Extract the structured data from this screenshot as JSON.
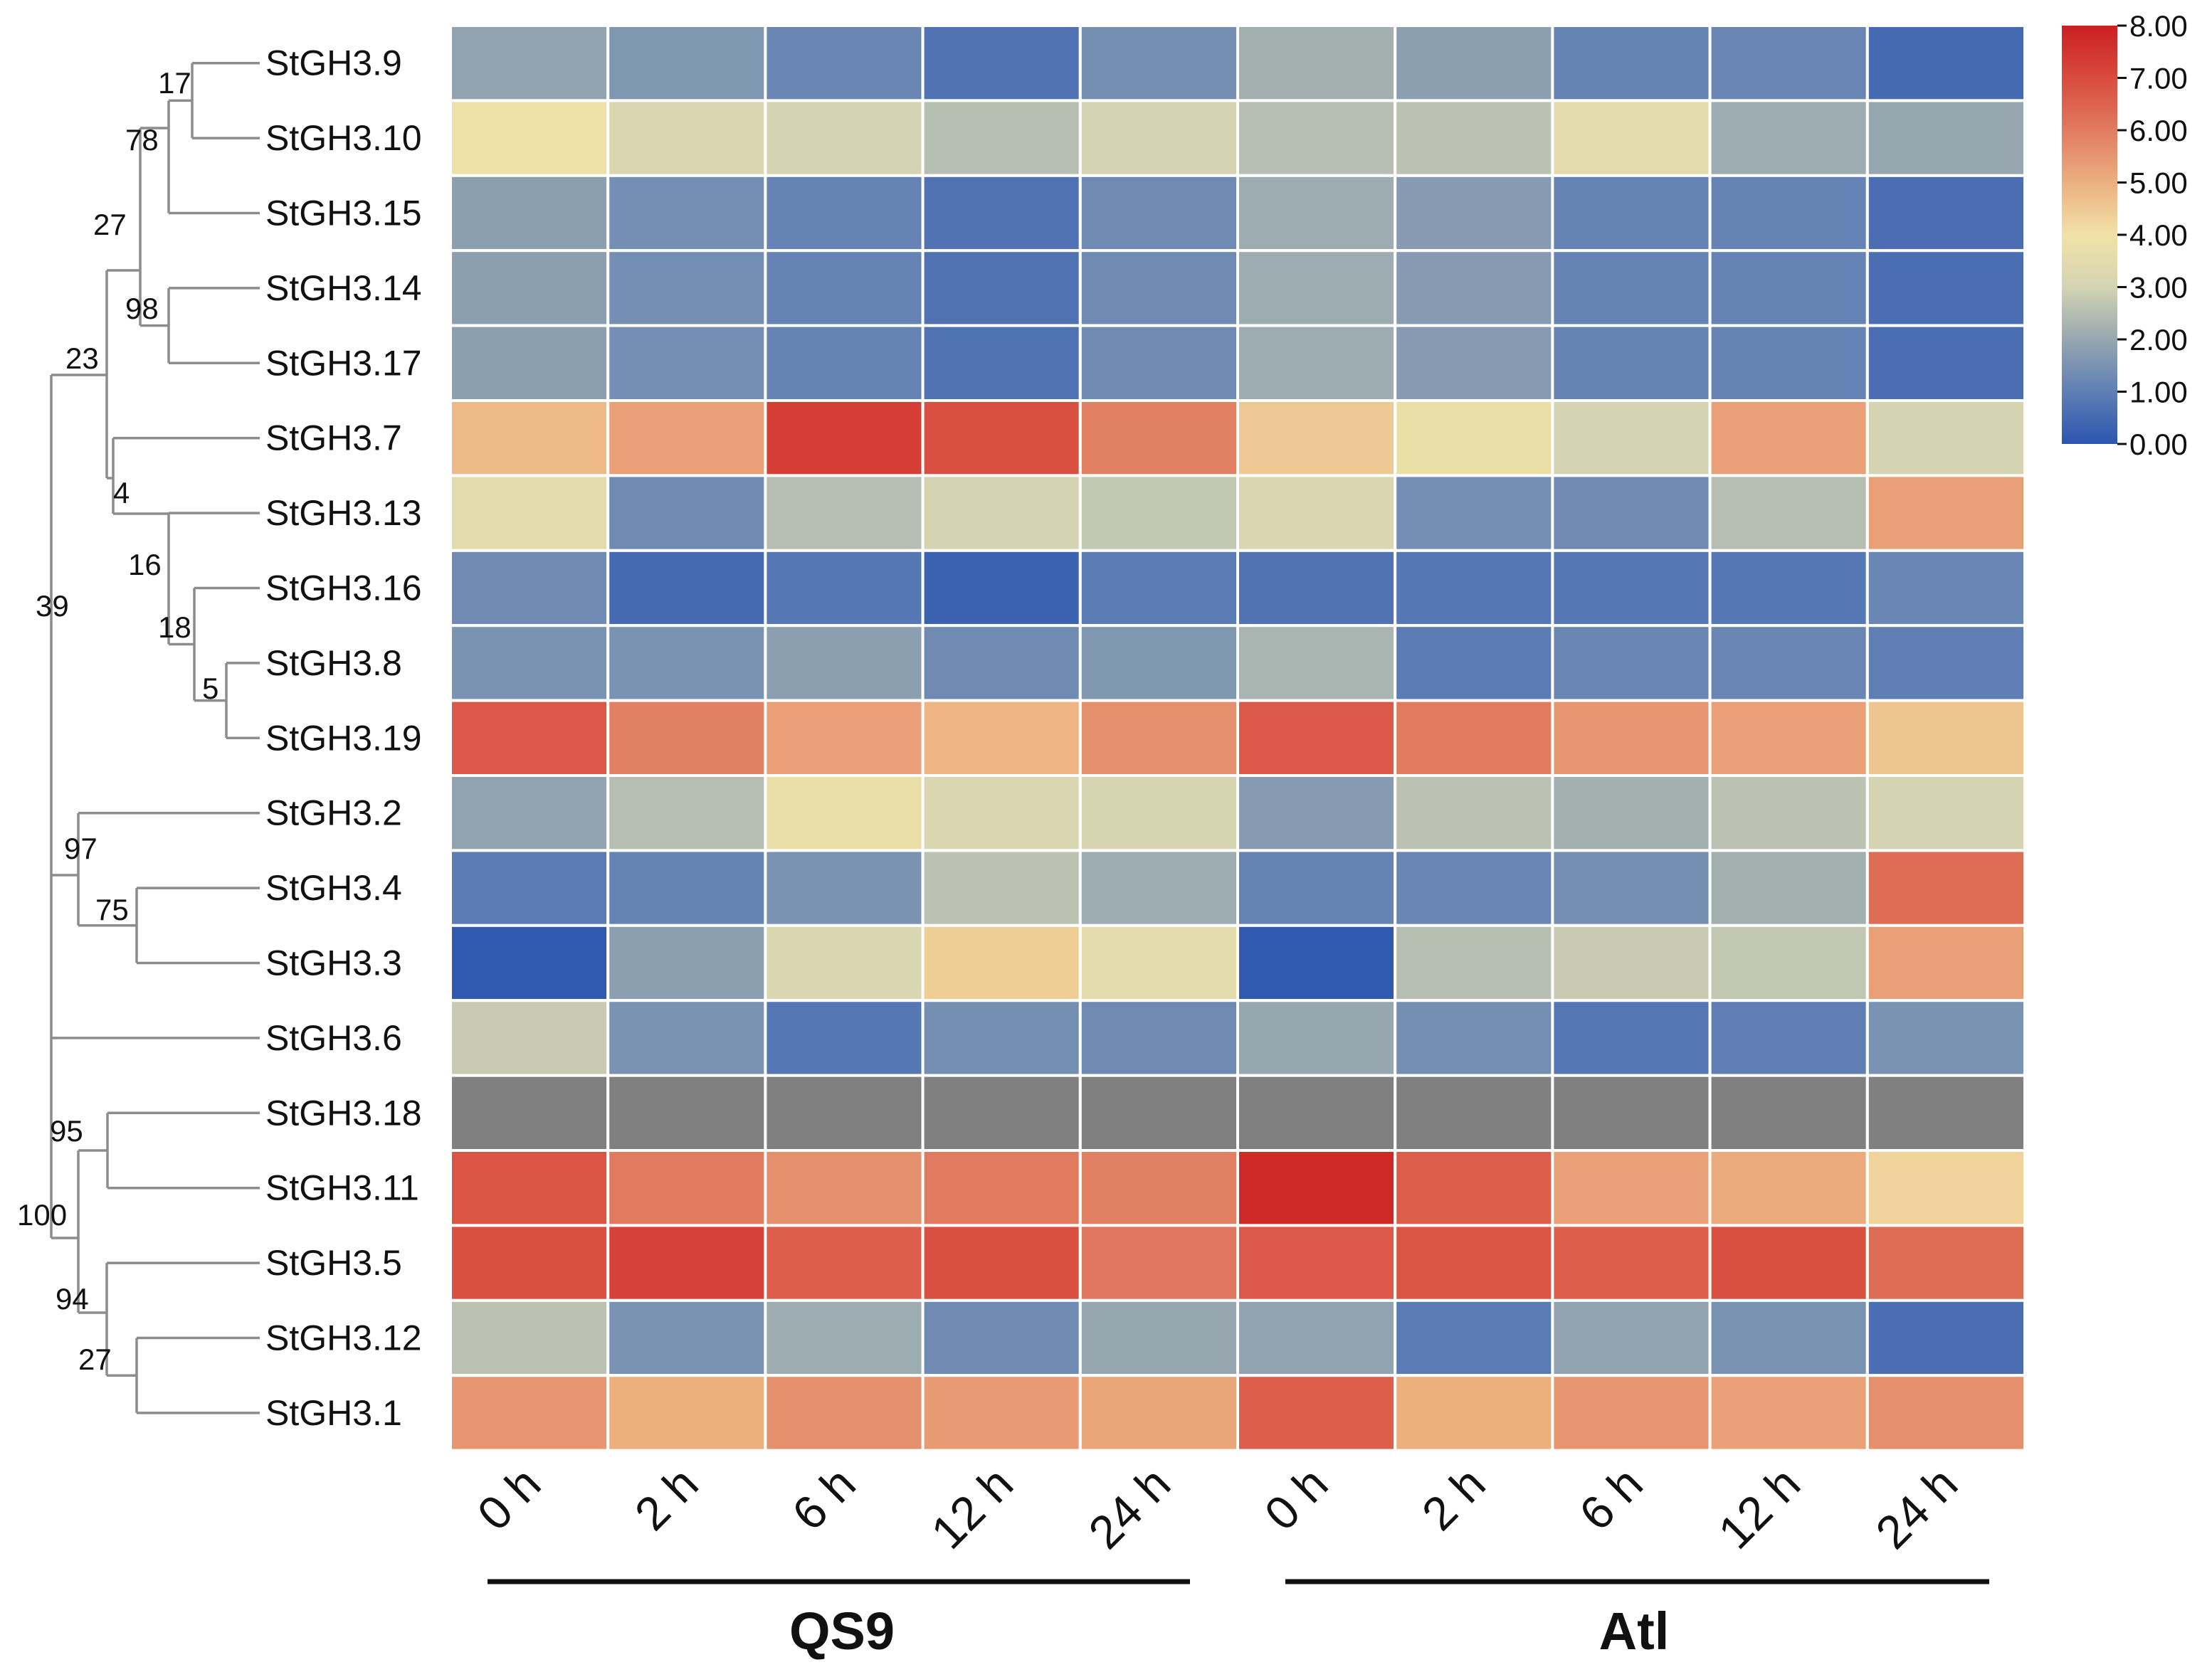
{
  "chart_data": {
    "type": "heatmap",
    "title": "",
    "rows": [
      "StGH3.9",
      "StGH3.10",
      "StGH3.15",
      "StGH3.14",
      "StGH3.17",
      "StGH3.7",
      "StGH3.13",
      "StGH3.16",
      "StGH3.8",
      "StGH3.19",
      "StGH3.2",
      "StGH3.4",
      "StGH3.3",
      "StGH3.6",
      "StGH3.18",
      "StGH3.11",
      "StGH3.5",
      "StGH3.12",
      "StGH3.1"
    ],
    "columns": [
      "0 h",
      "2 h",
      "6 h",
      "12 h",
      "24 h",
      "0 h",
      "2 h",
      "6 h",
      "12 h",
      "24 h"
    ],
    "groups": [
      {
        "name": "QS9",
        "columns": [
          0,
          4
        ]
      },
      {
        "name": "Atl",
        "columns": [
          5,
          9
        ]
      }
    ],
    "values": [
      [
        1.9,
        1.6,
        1.2,
        0.7,
        1.4,
        2.2,
        1.8,
        1.1,
        1.2,
        0.5
      ],
      [
        3.9,
        3.2,
        3.0,
        2.5,
        3.0,
        2.5,
        2.6,
        3.5,
        2.1,
        2.0
      ],
      [
        1.8,
        1.4,
        1.1,
        0.7,
        1.3,
        2.1,
        1.7,
        1.1,
        1.1,
        0.6
      ],
      [
        1.8,
        1.4,
        1.1,
        0.7,
        1.3,
        2.1,
        1.7,
        1.1,
        1.1,
        0.6
      ],
      [
        1.8,
        1.4,
        1.1,
        0.7,
        1.3,
        2.1,
        1.7,
        1.1,
        1.1,
        0.6
      ],
      [
        4.8,
        5.3,
        7.3,
        6.9,
        5.9,
        4.5,
        3.8,
        3.0,
        5.3,
        3.0
      ],
      [
        3.5,
        1.3,
        2.5,
        3.0,
        2.7,
        3.2,
        1.4,
        1.3,
        2.5,
        5.3
      ],
      [
        1.3,
        0.5,
        0.8,
        0.3,
        0.9,
        0.7,
        0.8,
        0.8,
        0.8,
        1.2
      ],
      [
        1.5,
        1.5,
        1.8,
        1.3,
        1.6,
        2.3,
        0.9,
        1.2,
        1.2,
        1.0
      ],
      [
        6.7,
        5.9,
        5.3,
        4.9,
        5.6,
        6.7,
        6.0,
        5.5,
        5.3,
        4.6
      ],
      [
        1.9,
        2.5,
        3.8,
        3.2,
        3.1,
        1.7,
        2.6,
        2.2,
        2.6,
        3.0
      ],
      [
        0.9,
        1.1,
        1.5,
        2.6,
        2.1,
        1.1,
        1.2,
        1.4,
        2.2,
        6.3
      ],
      [
        0.1,
        1.8,
        3.2,
        4.4,
        3.5,
        0.1,
        2.5,
        2.8,
        2.7,
        5.3
      ],
      [
        2.8,
        1.5,
        0.8,
        1.4,
        1.3,
        2.0,
        1.4,
        0.8,
        1.0,
        1.5
      ],
      [
        null,
        null,
        null,
        null,
        null,
        null,
        null,
        null,
        null,
        null
      ],
      [
        6.8,
        6.0,
        5.6,
        6.0,
        5.9,
        7.8,
        6.6,
        5.3,
        5.1,
        4.3
      ],
      [
        6.9,
        7.2,
        6.6,
        6.9,
        6.1,
        6.7,
        6.8,
        6.6,
        6.9,
        6.3
      ],
      [
        2.6,
        1.5,
        2.1,
        1.3,
        2.0,
        1.9,
        0.9,
        1.9,
        1.5,
        0.6
      ],
      [
        5.5,
        5.0,
        5.6,
        5.4,
        5.2,
        6.6,
        5.0,
        5.5,
        5.3,
        5.6
      ]
    ],
    "missing_color": "#808080",
    "colorscale": {
      "min": 0,
      "max": 8,
      "ticks": [
        "8.00",
        "7.00",
        "6.00",
        "5.00",
        "4.00",
        "3.00",
        "2.00",
        "1.00",
        "0.00"
      ],
      "stops": [
        {
          "value": 0,
          "color": "#2c55b0"
        },
        {
          "value": 1,
          "color": "#5f7fb4"
        },
        {
          "value": 2,
          "color": "#96a7b0"
        },
        {
          "value": 3,
          "color": "#d4d4b2"
        },
        {
          "value": 4,
          "color": "#f1e2a6"
        },
        {
          "value": 5,
          "color": "#ecb07f"
        },
        {
          "value": 6,
          "color": "#e17b60"
        },
        {
          "value": 7,
          "color": "#d84b3d"
        },
        {
          "value": 8,
          "color": "#cc1f22"
        }
      ]
    },
    "bootstrap_values": [
      "17",
      "78",
      "27",
      "98",
      "23",
      "4",
      "16",
      "18",
      "5",
      "39",
      "97",
      "75",
      "95",
      "100",
      "94",
      "27"
    ]
  }
}
